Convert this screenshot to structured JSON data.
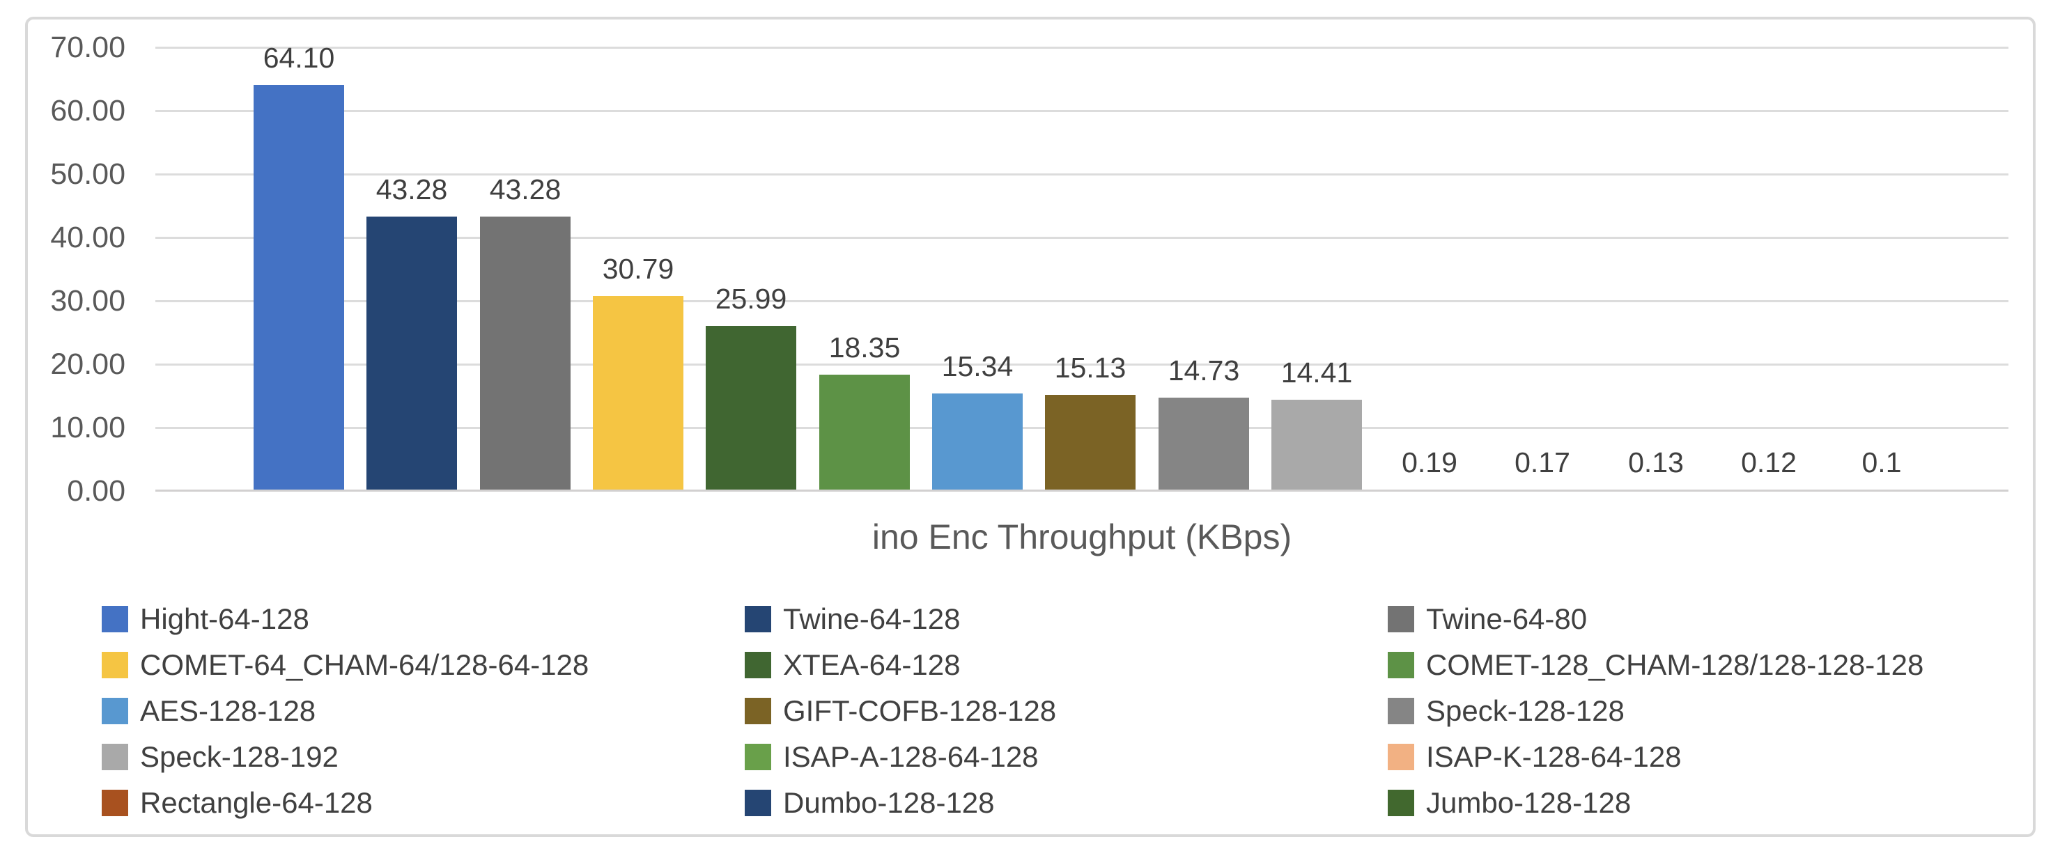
{
  "chart_data": {
    "type": "bar",
    "title": "",
    "xlabel": "ino Enc Throughput (KBps)",
    "ylabel": "",
    "ylim": [
      0,
      70
    ],
    "grid": true,
    "legend_position": "bottom",
    "legend_columns": 3,
    "yticks": [
      {
        "value": 70,
        "label": "70.00"
      },
      {
        "value": 60,
        "label": "60.00"
      },
      {
        "value": 50,
        "label": "50.00"
      },
      {
        "value": 40,
        "label": "40.00"
      },
      {
        "value": 30,
        "label": "30.00"
      },
      {
        "value": 20,
        "label": "20.00"
      },
      {
        "value": 10,
        "label": "10.00"
      },
      {
        "value": 0,
        "label": "0.00"
      }
    ],
    "series": [
      {
        "name": "Hight-64-128",
        "value": 64.1,
        "value_label": "64.10",
        "color": "#4472c4"
      },
      {
        "name": "Twine-64-128",
        "value": 43.28,
        "value_label": "43.28",
        "color": "#254573"
      },
      {
        "name": "Twine-64-80",
        "value": 43.28,
        "value_label": "43.28",
        "color": "#737373"
      },
      {
        "name": "COMET-64_CHAM-64/128-64-128",
        "value": 30.79,
        "value_label": "30.79",
        "color": "#f5c543"
      },
      {
        "name": "XTEA-64-128",
        "value": 25.99,
        "value_label": "25.99",
        "color": "#406631"
      },
      {
        "name": "COMET-128_CHAM-128/128-128-128",
        "value": 18.35,
        "value_label": "18.35",
        "color": "#5d9246"
      },
      {
        "name": "AES-128-128",
        "value": 15.34,
        "value_label": "15.34",
        "color": "#5898d0"
      },
      {
        "name": "GIFT-COFB-128-128",
        "value": 15.13,
        "value_label": "15.13",
        "color": "#7b6325"
      },
      {
        "name": "Speck-128-128",
        "value": 14.73,
        "value_label": "14.73",
        "color": "#858585"
      },
      {
        "name": "Speck-128-192",
        "value": 14.41,
        "value_label": "14.41",
        "color": "#a9a9a9"
      },
      {
        "name": "ISAP-A-128-64-128",
        "value": 0.19,
        "value_label": "0.19",
        "color": "#69a04a"
      },
      {
        "name": "ISAP-K-128-64-128",
        "value": 0.17,
        "value_label": "0.17",
        "color": "#f2b183"
      },
      {
        "name": "Rectangle-64-128",
        "value": 0.13,
        "value_label": "0.13",
        "color": "#a8511f"
      },
      {
        "name": "Dumbo-128-128",
        "value": 0.12,
        "value_label": "0.12",
        "color": "#254573"
      },
      {
        "name": "Jumbo-128-128",
        "value": 0.1,
        "value_label": "0.1",
        "color": "#41682e"
      }
    ]
  }
}
